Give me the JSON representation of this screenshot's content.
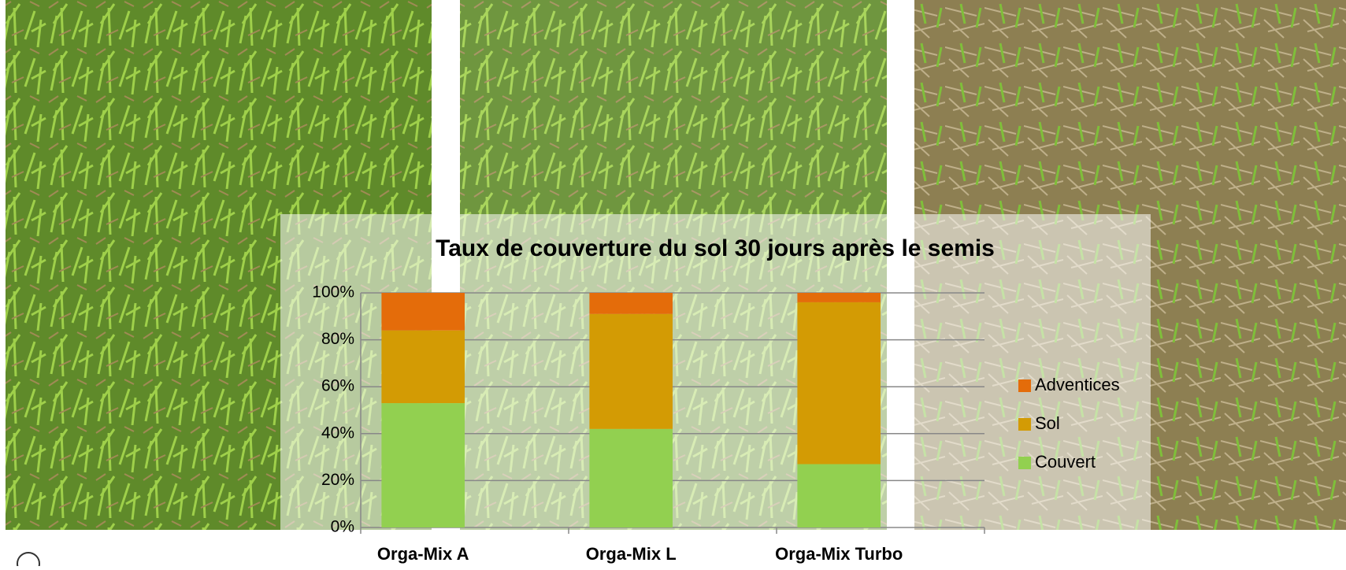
{
  "chart_data": {
    "type": "stacked_bar",
    "title": "Taux de couverture du sol 30 jours après le semis",
    "categories": [
      "Orga-Mix A",
      "Orga-Mix L",
      "Orga-Mix Turbo"
    ],
    "series": [
      {
        "name": "Couvert",
        "color": "#92d050",
        "values": [
          53,
          42,
          27
        ]
      },
      {
        "name": "Sol",
        "color": "#d39b04",
        "values": [
          31,
          49,
          69
        ]
      },
      {
        "name": "Adventices",
        "color": "#e46c0a",
        "values": [
          16,
          9,
          4
        ]
      }
    ],
    "ylim": [
      0,
      100
    ],
    "yticks": [
      {
        "value": 0,
        "label": "0%"
      },
      {
        "value": 20,
        "label": "20%"
      },
      {
        "value": 40,
        "label": "40%"
      },
      {
        "value": 60,
        "label": "60%"
      },
      {
        "value": 80,
        "label": "80%"
      },
      {
        "value": 100,
        "label": "100%"
      }
    ],
    "grid": true,
    "legend": "right"
  }
}
